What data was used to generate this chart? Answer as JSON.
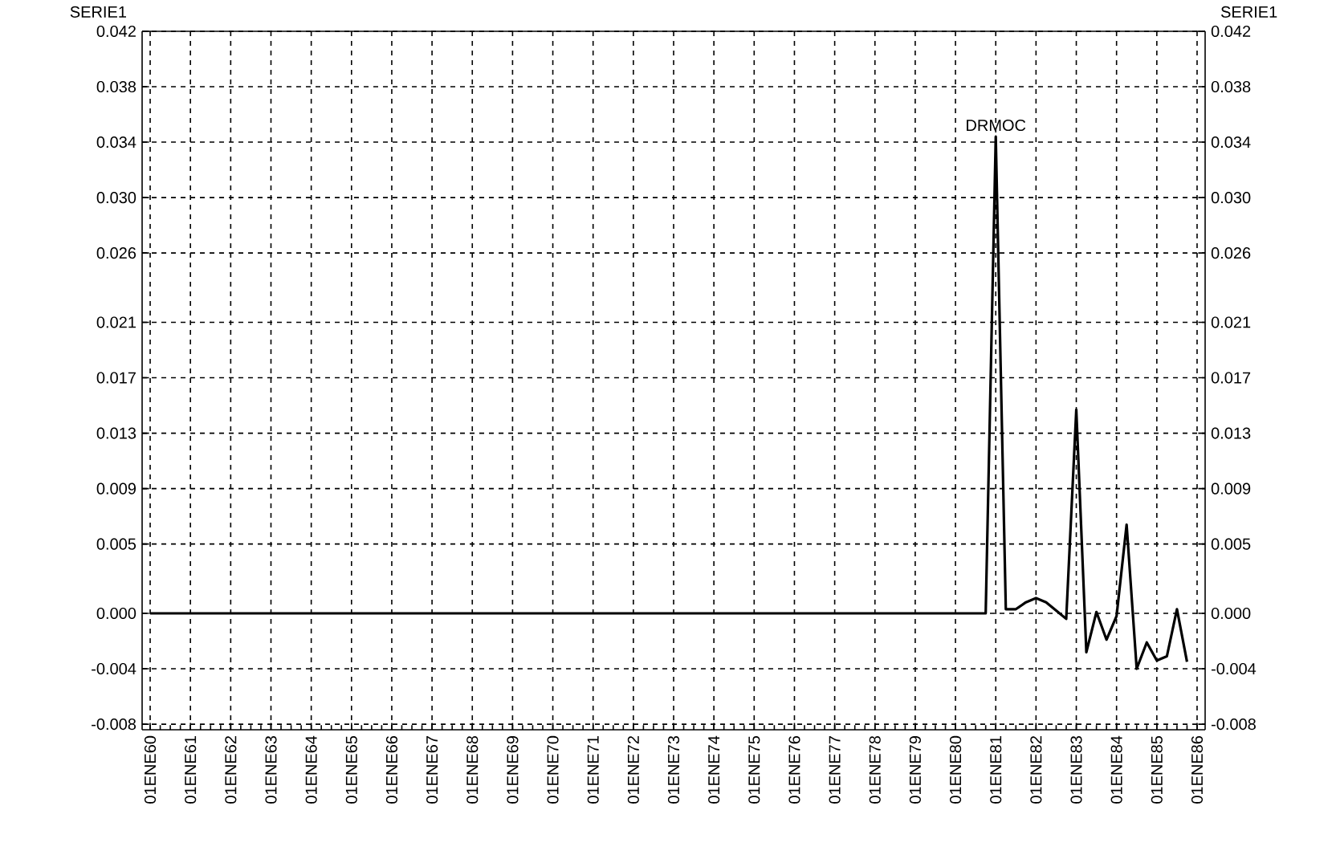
{
  "chart_data": {
    "type": "line",
    "ylabel": "SERIE1",
    "y2label": "SERIE1",
    "categories": [
      "01ENE60",
      null,
      null,
      null,
      "01ENE61",
      null,
      null,
      null,
      "01ENE62",
      null,
      null,
      null,
      "01ENE63",
      null,
      null,
      null,
      "01ENE64",
      null,
      null,
      null,
      "01ENE65",
      null,
      null,
      null,
      "01ENE66",
      null,
      null,
      null,
      "01ENE67",
      null,
      null,
      null,
      "01ENE68",
      null,
      null,
      null,
      "01ENE69",
      null,
      null,
      null,
      "01ENE70",
      null,
      null,
      null,
      "01ENE71",
      null,
      null,
      null,
      "01ENE72",
      null,
      null,
      null,
      "01ENE73",
      null,
      null,
      null,
      "01ENE74",
      null,
      null,
      null,
      "01ENE75",
      null,
      null,
      null,
      "01ENE76",
      null,
      null,
      null,
      "01ENE77",
      null,
      null,
      null,
      "01ENE78",
      null,
      null,
      null,
      "01ENE79",
      null,
      null,
      null,
      "01ENE80",
      null,
      null,
      null,
      "01ENE81",
      null,
      null,
      null,
      "01ENE82",
      null,
      null,
      null,
      "01ENE83",
      null,
      null,
      null,
      "01ENE84",
      null,
      null,
      null,
      "01ENE85",
      null,
      null,
      null,
      "01ENE86"
    ],
    "series": [
      {
        "name": "DRMOC",
        "color": "#000000",
        "axis": "y",
        "values": [
          0,
          0,
          0,
          0,
          0,
          0,
          0,
          0,
          0,
          0,
          0,
          0,
          0,
          0,
          0,
          0,
          0,
          0,
          0,
          0,
          0,
          0,
          0,
          0,
          0,
          0,
          0,
          0,
          0,
          0,
          0,
          0,
          0,
          0,
          0,
          0,
          0,
          0,
          0,
          0,
          0,
          0,
          0,
          0,
          0,
          0,
          0,
          0,
          0,
          0,
          0,
          0,
          0,
          0,
          0,
          0,
          0,
          0,
          0,
          0,
          0,
          0,
          0,
          0,
          0,
          0,
          0,
          0,
          0,
          0,
          0,
          0,
          0,
          0,
          0,
          0,
          0,
          0,
          0,
          0,
          0,
          0,
          0,
          0,
          0.0344,
          0.0003,
          0.0003,
          0.0008,
          0.0011,
          0.0008,
          0.0002,
          -0.0004,
          0.0147,
          -0.0028,
          0.0001,
          -0.0019,
          -0.0002,
          0.0064,
          -0.004,
          -0.0021,
          -0.0034,
          -0.0031,
          0.0003,
          -0.0035,
          null
        ]
      }
    ],
    "ylim": [
      -0.0084,
      0.042
    ],
    "yticks": [
      -0.008,
      -0.004,
      {
        "value": 0,
        "label": "0.000"
      },
      0.005,
      0.009,
      0.013,
      0.017,
      0.021,
      0.026,
      {
        "value": 0.03,
        "label": "0.030"
      },
      0.034,
      0.038,
      0.042
    ],
    "y2lim": [
      -0.0084,
      0.042
    ],
    "y2ticks": [
      -0.008,
      -0.004,
      {
        "value": 0,
        "label": "0.000"
      },
      0.005,
      0.009,
      0.013,
      0.017,
      0.021,
      0.026,
      {
        "value": 0.03,
        "label": "0.030"
      },
      0.034,
      0.038,
      0.042
    ],
    "grid": true,
    "marker": "none",
    "line_style": "solid"
  }
}
